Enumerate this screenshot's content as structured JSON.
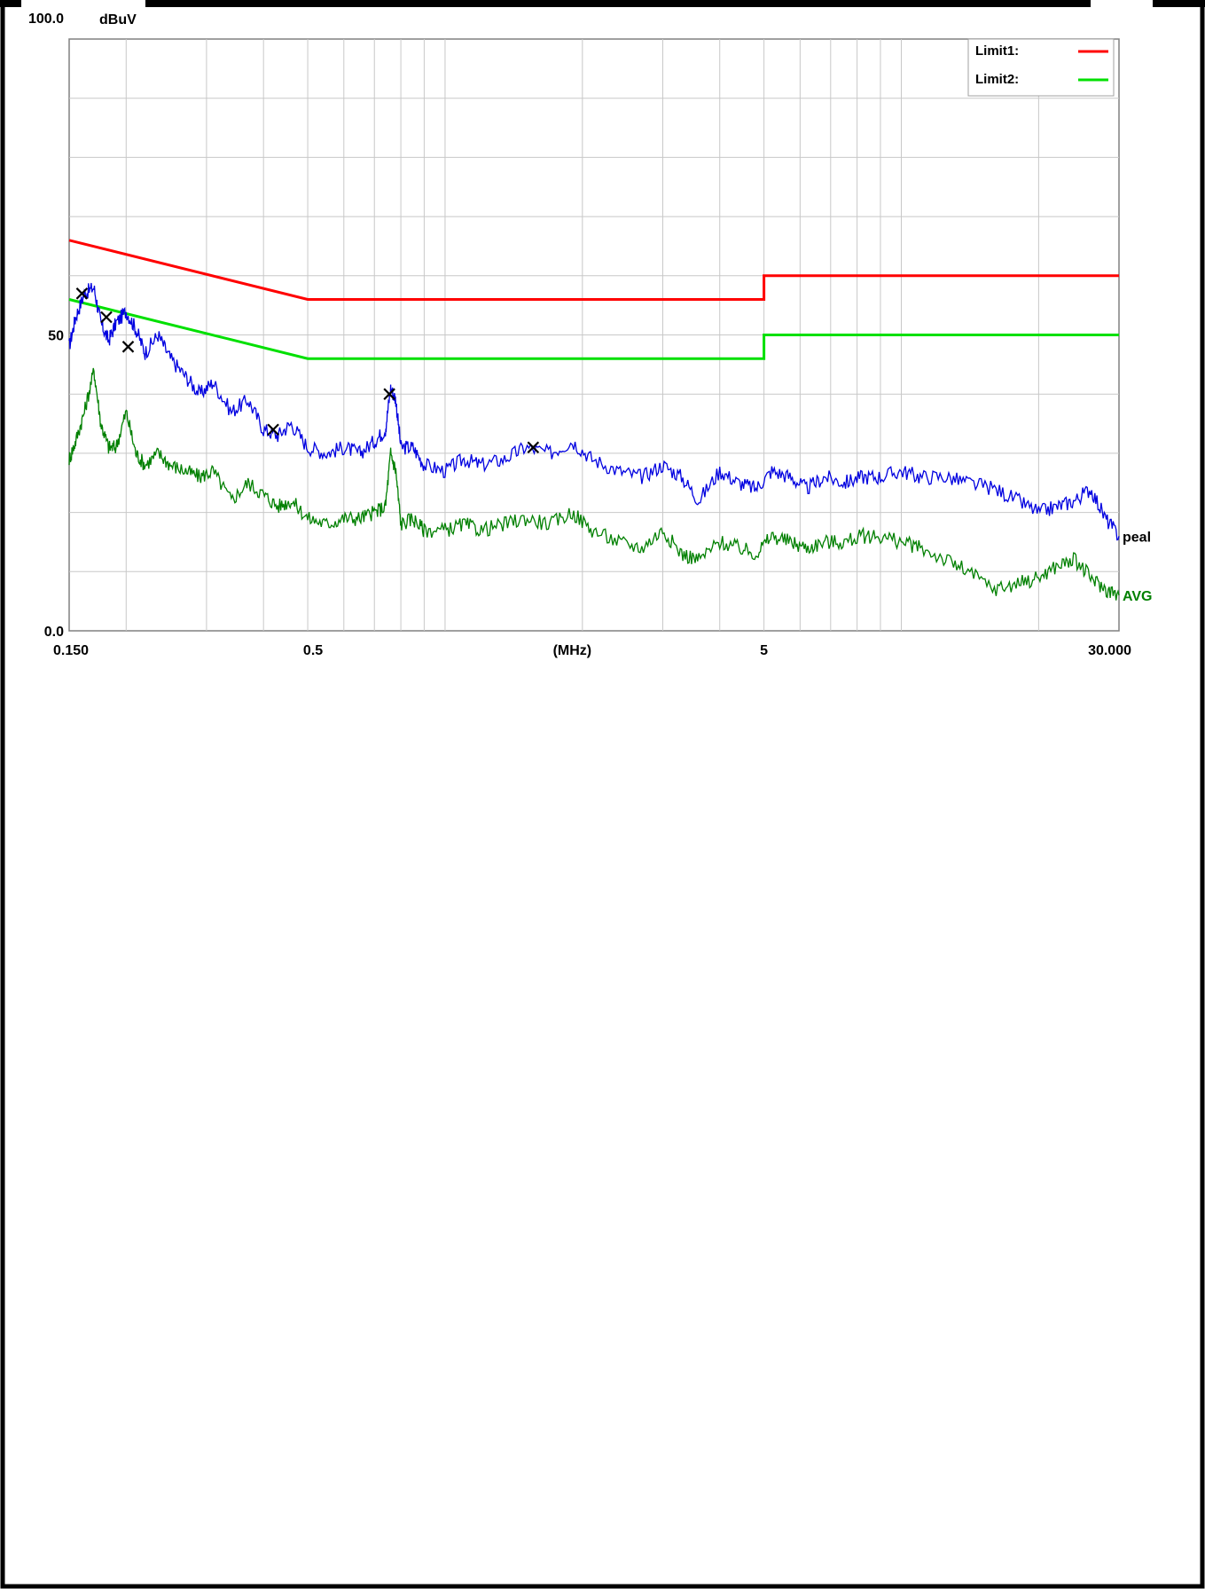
{
  "chart_data": {
    "type": "line",
    "title": "",
    "ylabel": "dBuV",
    "xlabel": "(MHz)",
    "x_scale": "log",
    "xlim": [
      0.15,
      30
    ],
    "ylim": [
      0,
      100
    ],
    "y_tick_labels": [
      "100.0",
      "50",
      "0.0"
    ],
    "y_tick_values": [
      100,
      50,
      0
    ],
    "x_tick_labels": [
      "0.150",
      "0.5",
      "(MHz)",
      "5",
      "30.000"
    ],
    "x_tick_values": [
      0.15,
      0.5,
      1.9,
      5,
      30
    ],
    "grid": true,
    "legend": {
      "position": "top-right",
      "entries": [
        {
          "label": "Limit1:",
          "color": "#ff0000"
        },
        {
          "label": "Limit2:",
          "color": "#00e000"
        }
      ]
    },
    "limits": [
      {
        "name": "Limit1",
        "color": "#ff0000",
        "points": [
          [
            0.15,
            66
          ],
          [
            0.5,
            56
          ],
          [
            5,
            56
          ],
          [
            5,
            60
          ],
          [
            30,
            60
          ]
        ]
      },
      {
        "name": "Limit2",
        "color": "#00e000",
        "points": [
          [
            0.15,
            56
          ],
          [
            0.5,
            46
          ],
          [
            5,
            46
          ],
          [
            5,
            50
          ],
          [
            30,
            50
          ]
        ]
      }
    ],
    "series": [
      {
        "name": "peal",
        "label_color": "#000000",
        "color": "#0000e0",
        "x": [
          0.15,
          0.155,
          0.162,
          0.17,
          0.176,
          0.183,
          0.19,
          0.2,
          0.21,
          0.22,
          0.235,
          0.25,
          0.27,
          0.29,
          0.31,
          0.34,
          0.37,
          0.4,
          0.43,
          0.46,
          0.5,
          0.55,
          0.6,
          0.65,
          0.7,
          0.74,
          0.76,
          0.78,
          0.8,
          0.85,
          0.9,
          1.0,
          1.1,
          1.2,
          1.35,
          1.5,
          1.7,
          1.9,
          2.1,
          2.4,
          2.7,
          3.0,
          3.3,
          3.6,
          4.0,
          4.4,
          4.8,
          5.2,
          5.7,
          6.2,
          6.8,
          7.5,
          8.2,
          9.0,
          10.0,
          11.0,
          12.5,
          14.0,
          16.0,
          18.0,
          20.0,
          22.0,
          24.0,
          26.0,
          28.0,
          30.0
        ],
        "y": [
          48,
          53,
          57,
          58,
          52,
          49,
          52,
          54,
          51,
          47,
          50,
          46,
          43,
          40,
          42,
          37,
          39,
          34,
          33,
          35,
          31,
          30,
          31,
          30,
          32,
          34,
          41,
          39,
          31,
          31,
          28,
          27,
          29,
          28,
          29,
          31,
          30,
          32,
          29,
          27,
          26,
          28,
          26,
          22,
          27,
          25,
          24,
          27,
          26,
          24,
          26,
          25,
          26,
          26,
          27,
          26,
          26,
          25,
          24,
          22,
          20,
          21,
          22,
          24,
          19,
          16
        ]
      },
      {
        "name": "AVG",
        "label_color": "#008000",
        "color": "#008000",
        "x": [
          0.15,
          0.155,
          0.162,
          0.17,
          0.176,
          0.183,
          0.19,
          0.2,
          0.21,
          0.22,
          0.235,
          0.25,
          0.27,
          0.29,
          0.31,
          0.34,
          0.37,
          0.4,
          0.43,
          0.46,
          0.5,
          0.55,
          0.6,
          0.65,
          0.7,
          0.74,
          0.76,
          0.78,
          0.8,
          0.85,
          0.9,
          1.0,
          1.1,
          1.2,
          1.35,
          1.5,
          1.7,
          1.9,
          2.1,
          2.4,
          2.7,
          3.0,
          3.3,
          3.6,
          4.0,
          4.4,
          4.8,
          5.2,
          5.7,
          6.2,
          6.8,
          7.5,
          8.2,
          9.0,
          10.0,
          11.0,
          12.5,
          14.0,
          16.0,
          18.0,
          20.0,
          22.0,
          24.0,
          26.0,
          28.0,
          30.0
        ],
        "y": [
          29,
          32,
          37,
          44,
          35,
          31,
          31,
          37,
          30,
          28,
          30,
          28,
          27,
          26,
          27,
          22,
          25,
          23,
          21,
          22,
          19,
          18,
          19,
          19,
          20,
          21,
          30,
          27,
          18,
          19,
          17,
          17,
          18,
          17,
          18,
          19,
          18,
          20,
          17,
          15,
          14,
          17,
          13,
          12,
          15,
          14,
          13,
          16,
          15,
          14,
          15,
          15,
          16,
          16,
          15,
          14,
          12,
          10,
          7,
          8,
          9,
          11,
          12,
          9,
          7,
          6
        ]
      }
    ],
    "markers": [
      {
        "x": 0.16,
        "y": 57
      },
      {
        "x": 0.181,
        "y": 53
      },
      {
        "x": 0.202,
        "y": 48
      },
      {
        "x": 0.42,
        "y": 34
      },
      {
        "x": 0.755,
        "y": 40
      },
      {
        "x": 1.56,
        "y": 31
      }
    ]
  }
}
